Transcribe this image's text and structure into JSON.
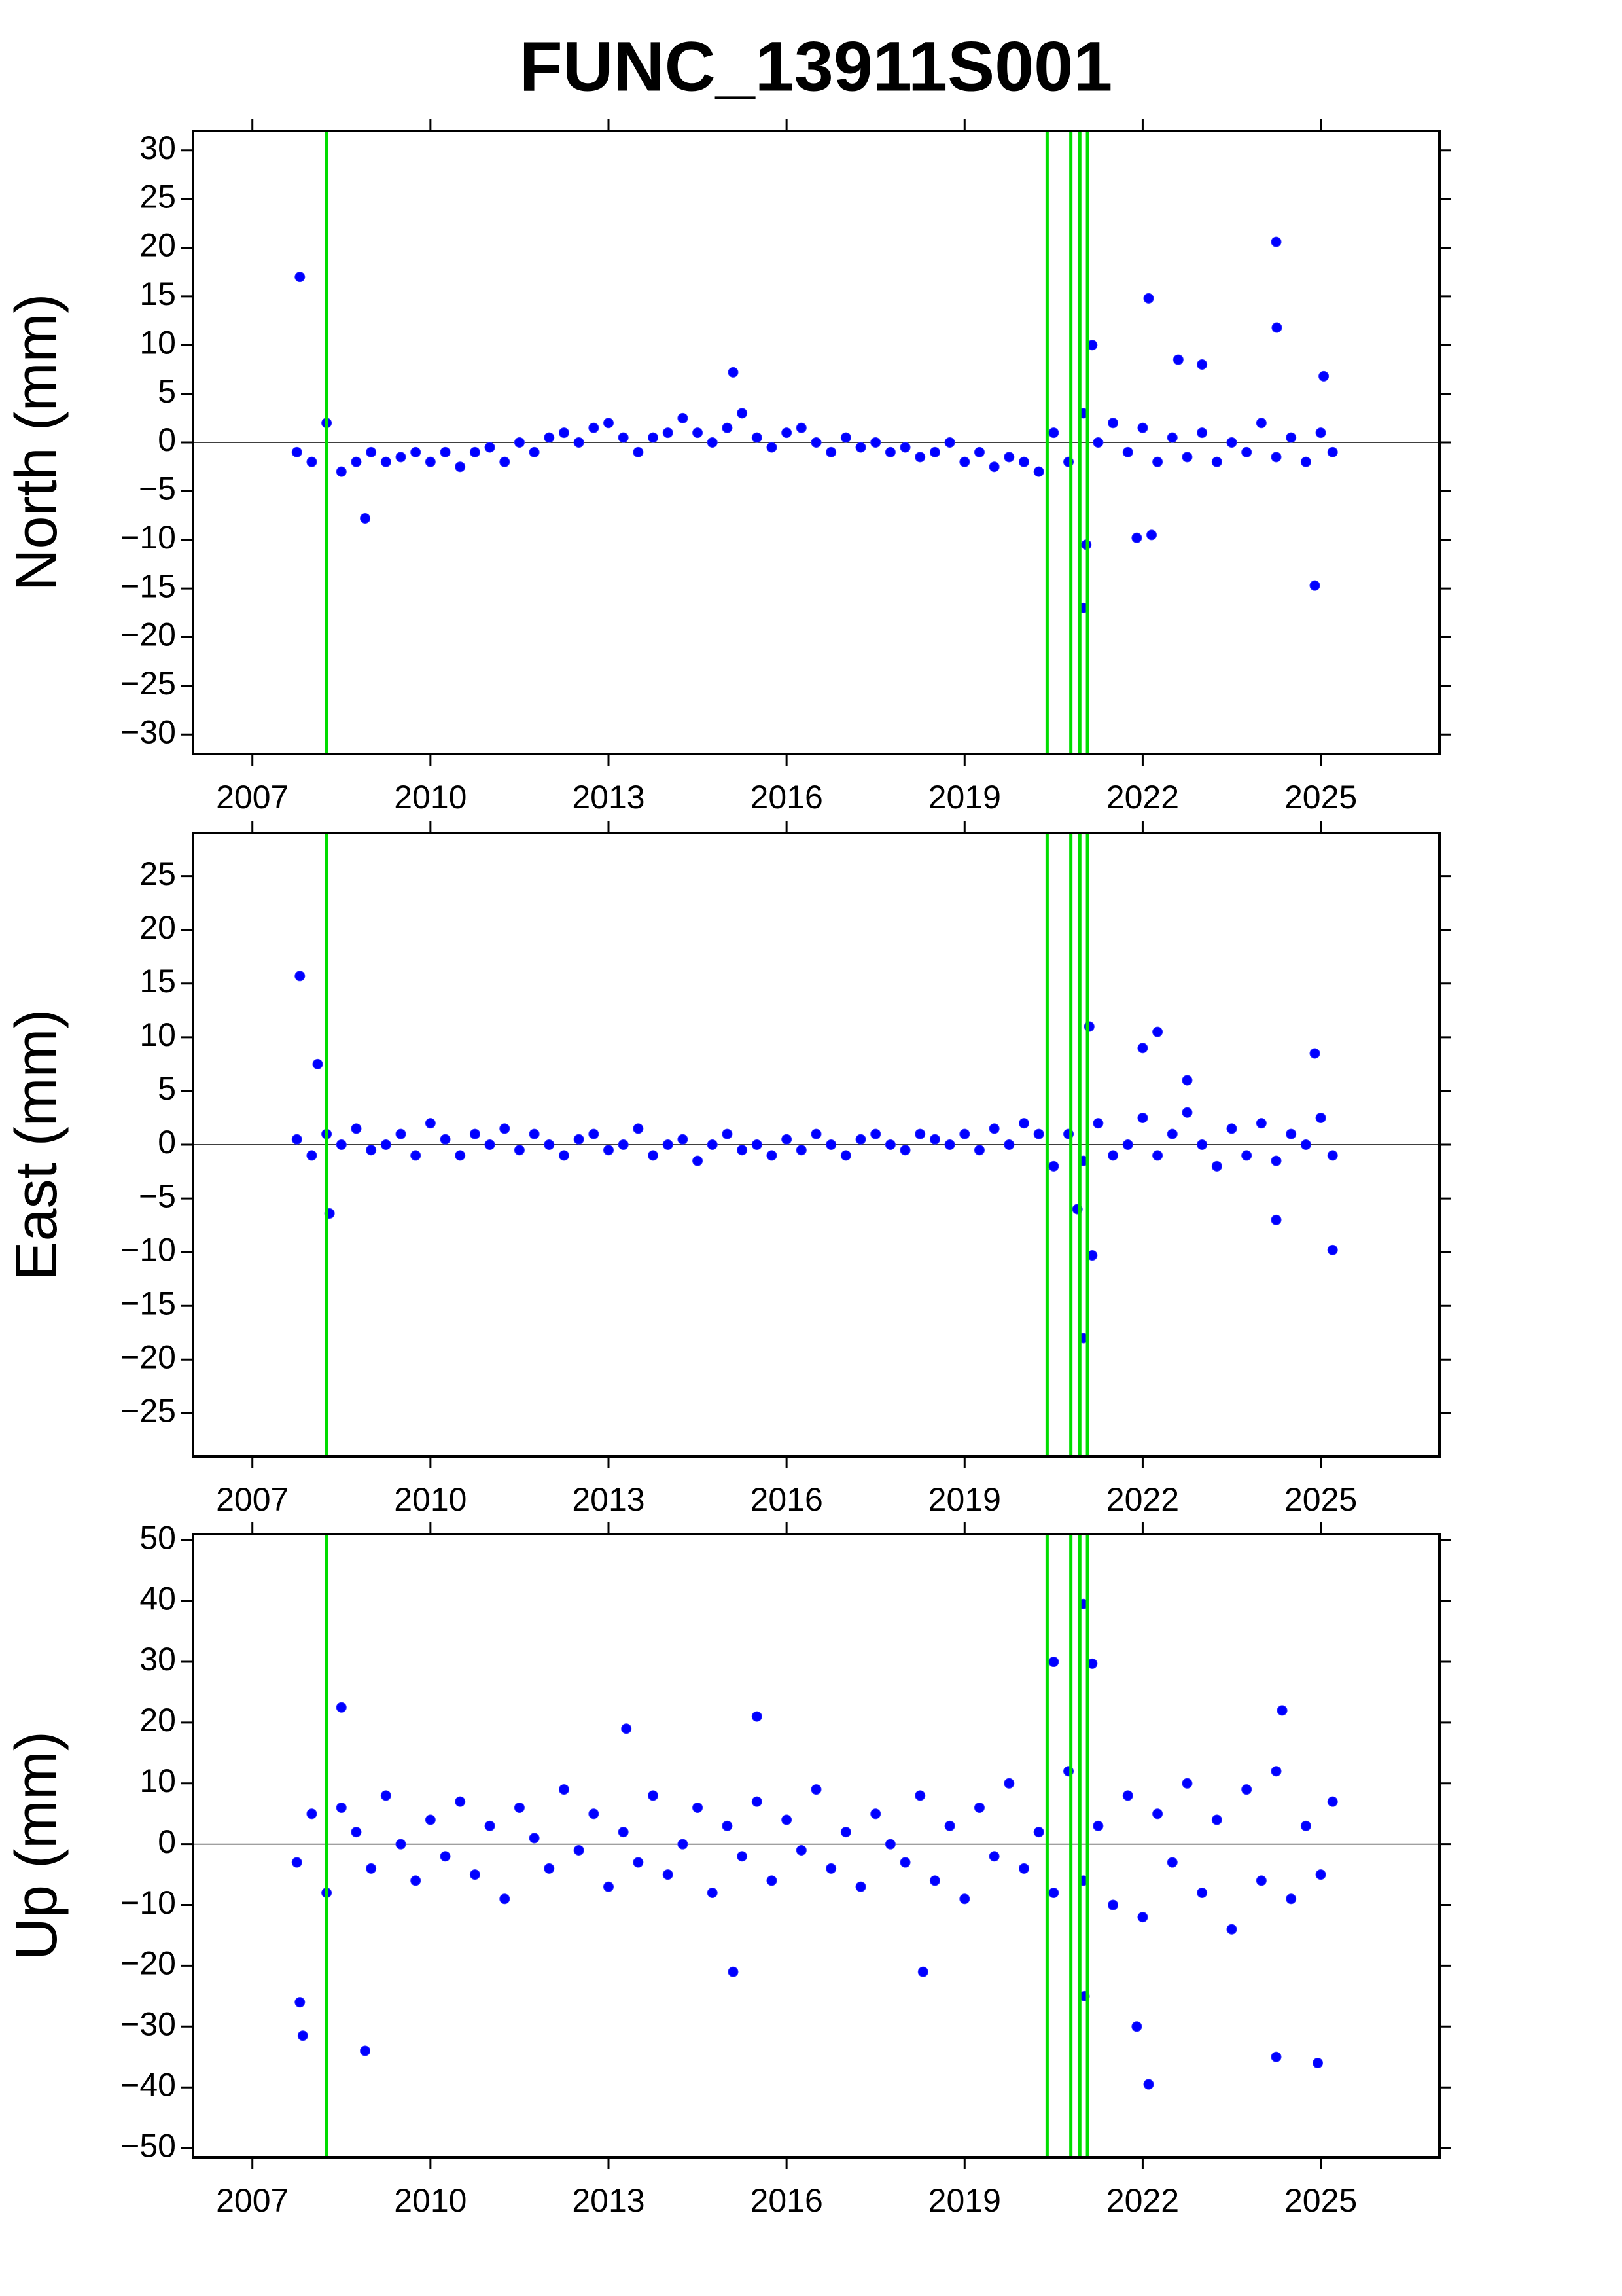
{
  "title": "FUNC_13911S001",
  "chart_data": [
    {
      "type": "scatter",
      "y_label": "North (mm)",
      "color": "#0000ff",
      "vline_color": "#00dd00",
      "hline": 0,
      "xlim": [
        2006,
        2027
      ],
      "xticks": [
        2007,
        2010,
        2013,
        2016,
        2019,
        2022,
        2025
      ],
      "ylim": [
        -32,
        32
      ],
      "yticks": [
        {
          "value": -30,
          "label": "−30"
        },
        {
          "value": -25,
          "label": "−25"
        },
        {
          "value": -20,
          "label": "−20"
        },
        {
          "value": -15,
          "label": "−15"
        },
        {
          "value": -10,
          "label": "−10"
        },
        {
          "value": -5,
          "label": "−5"
        },
        0,
        5,
        10,
        15,
        20,
        25,
        30
      ],
      "vlines": [
        2008.25,
        2020.39,
        2020.79,
        2020.94,
        2021.07
      ],
      "x": [
        2007.75,
        2008,
        2008.25,
        2008.5,
        2008.75,
        2009,
        2009.25,
        2009.5,
        2009.75,
        2010,
        2010.25,
        2010.5,
        2010.75,
        2011,
        2011.25,
        2011.5,
        2011.75,
        2012,
        2012.25,
        2012.5,
        2012.75,
        2013,
        2013.25,
        2013.5,
        2013.75,
        2014,
        2014.25,
        2014.5,
        2014.75,
        2015,
        2015.25,
        2015.5,
        2015.75,
        2016,
        2016.25,
        2016.5,
        2016.75,
        2017,
        2017.25,
        2017.5,
        2017.75,
        2018,
        2018.25,
        2018.5,
        2018.75,
        2019,
        2019.25,
        2019.5,
        2019.75,
        2020,
        2020.25,
        2020.5,
        2020.75,
        2021,
        2021.25,
        2021.5,
        2021.75,
        2022,
        2022.25,
        2022.5,
        2022.75,
        2023,
        2023.25,
        2023.5,
        2023.75,
        2024,
        2024.25,
        2024.5,
        2024.75,
        2025,
        2025.2,
        2007.8,
        2008.9,
        2015.1,
        2021.0,
        2021.05,
        2021.15,
        2022.1,
        2022.15,
        2021.9,
        2024.25,
        2024.26,
        2024.9,
        2022.6,
        2023.0,
        2025.05
      ],
      "values": [
        -1,
        -2,
        2,
        -3,
        -2,
        -1,
        -2,
        -1.5,
        -1,
        -2,
        -1,
        -2.5,
        -1,
        -0.5,
        -2,
        0,
        -1,
        0.5,
        1,
        0,
        1.5,
        2,
        0.5,
        -1,
        0.5,
        1,
        2.5,
        1,
        0,
        1.5,
        3,
        0.5,
        -0.5,
        1,
        1.5,
        0,
        -1,
        0.5,
        -0.5,
        0,
        -1,
        -0.5,
        -1.5,
        -1,
        0,
        -2,
        -1,
        -2.5,
        -1.5,
        -2,
        -3,
        1,
        -2,
        3,
        0,
        2,
        -1,
        1.5,
        -2,
        0.5,
        -1.5,
        1,
        -2,
        0,
        -1,
        2,
        -1.5,
        0.5,
        -2,
        1,
        -1,
        17,
        -7.8,
        7.2,
        -17,
        -10.5,
        10,
        14.8,
        -9.5,
        -9.8,
        20.6,
        11.8,
        -14.7,
        8.5,
        8,
        6.8
      ]
    },
    {
      "type": "scatter",
      "y_label": "East (mm)",
      "color": "#0000ff",
      "vline_color": "#00dd00",
      "hline": 0,
      "xlim": [
        2006,
        2027
      ],
      "xticks": [
        2007,
        2010,
        2013,
        2016,
        2019,
        2022,
        2025
      ],
      "ylim": [
        -29,
        29
      ],
      "yticks": [
        {
          "value": -25,
          "label": "−25"
        },
        {
          "value": -20,
          "label": "−20"
        },
        {
          "value": -15,
          "label": "−15"
        },
        {
          "value": -10,
          "label": "−10"
        },
        {
          "value": -5,
          "label": "−5"
        },
        0,
        5,
        10,
        15,
        20,
        25
      ],
      "vlines": [
        2008.25,
        2020.39,
        2020.79,
        2020.94,
        2021.07
      ],
      "x": [
        2007.75,
        2008,
        2008.25,
        2008.5,
        2008.75,
        2009,
        2009.25,
        2009.5,
        2009.75,
        2010,
        2010.25,
        2010.5,
        2010.75,
        2011,
        2011.25,
        2011.5,
        2011.75,
        2012,
        2012.25,
        2012.5,
        2012.75,
        2013,
        2013.25,
        2013.5,
        2013.75,
        2014,
        2014.25,
        2014.5,
        2014.75,
        2015,
        2015.25,
        2015.5,
        2015.75,
        2016,
        2016.25,
        2016.5,
        2016.75,
        2017,
        2017.25,
        2017.5,
        2017.75,
        2018,
        2018.25,
        2018.5,
        2018.75,
        2019,
        2019.25,
        2019.5,
        2019.75,
        2020,
        2020.25,
        2020.5,
        2020.75,
        2021,
        2021.25,
        2021.5,
        2021.75,
        2022,
        2022.25,
        2022.5,
        2022.75,
        2023,
        2023.25,
        2023.5,
        2023.75,
        2024,
        2024.25,
        2024.5,
        2024.75,
        2025,
        2025.2,
        2007.8,
        2008.3,
        2021.1,
        2021.0,
        2021.15,
        2022.25,
        2022.0,
        2024.25,
        2025.2,
        2024.9,
        2020.9,
        2008.1,
        2022.75
      ],
      "values": [
        0.5,
        -1,
        1,
        0,
        1.5,
        -0.5,
        0,
        1,
        -1,
        2,
        0.5,
        -1,
        1,
        0,
        1.5,
        -0.5,
        1,
        0,
        -1,
        0.5,
        1,
        -0.5,
        0,
        1.5,
        -1,
        0,
        0.5,
        -1.5,
        0,
        1,
        -0.5,
        0,
        -1,
        0.5,
        -0.5,
        1,
        0,
        -1,
        0.5,
        1,
        0,
        -0.5,
        1,
        0.5,
        0,
        1,
        -0.5,
        1.5,
        0,
        2,
        1,
        -2,
        1,
        -1.5,
        2,
        -1,
        0,
        2.5,
        -1,
        1,
        3,
        0,
        -2,
        1.5,
        -1,
        2,
        -1.5,
        1,
        0,
        2.5,
        -1,
        15.7,
        -6.4,
        11,
        -18,
        -10.3,
        10.5,
        9,
        -7,
        -9.8,
        8.5,
        -6,
        7.5,
        6
      ]
    },
    {
      "type": "scatter",
      "y_label": "Up (mm)",
      "color": "#0000ff",
      "vline_color": "#00dd00",
      "hline": 0,
      "xlim": [
        2006,
        2027
      ],
      "xticks": [
        2007,
        2010,
        2013,
        2016,
        2019,
        2022,
        2025
      ],
      "ylim": [
        -51.5,
        51
      ],
      "yticks": [
        {
          "value": -50,
          "label": "−50"
        },
        {
          "value": -40,
          "label": "−40"
        },
        {
          "value": -30,
          "label": "−30"
        },
        {
          "value": -20,
          "label": "−20"
        },
        {
          "value": -10,
          "label": "−10"
        },
        0,
        10,
        20,
        30,
        40,
        50
      ],
      "vlines": [
        2008.25,
        2020.39,
        2020.79,
        2020.94,
        2021.07
      ],
      "x": [
        2007.75,
        2008,
        2008.25,
        2008.5,
        2008.75,
        2009,
        2009.25,
        2009.5,
        2009.75,
        2010,
        2010.25,
        2010.5,
        2010.75,
        2011,
        2011.25,
        2011.5,
        2011.75,
        2012,
        2012.25,
        2012.5,
        2012.75,
        2013,
        2013.25,
        2013.5,
        2013.75,
        2014,
        2014.25,
        2014.5,
        2014.75,
        2015,
        2015.25,
        2015.5,
        2015.75,
        2016,
        2016.25,
        2016.5,
        2016.75,
        2017,
        2017.25,
        2017.5,
        2017.75,
        2018,
        2018.25,
        2018.5,
        2018.75,
        2019,
        2019.25,
        2019.5,
        2019.75,
        2020,
        2020.25,
        2020.5,
        2020.75,
        2021,
        2021.25,
        2021.5,
        2021.75,
        2022,
        2022.25,
        2022.5,
        2022.75,
        2023,
        2023.25,
        2023.5,
        2023.75,
        2024,
        2024.25,
        2024.5,
        2024.75,
        2025,
        2025.2,
        2007.85,
        2007.8,
        2008.9,
        2008.5,
        2013.3,
        2015.5,
        2020.5,
        2021.0,
        2021.15,
        2021.02,
        2022.1,
        2021.9,
        2024.25,
        2024.35,
        2024.95,
        2015.1,
        2018.3
      ],
      "values": [
        -3,
        5,
        -8,
        6,
        2,
        -4,
        8,
        0,
        -6,
        4,
        -2,
        7,
        -5,
        3,
        -9,
        6,
        1,
        -4,
        9,
        -1,
        5,
        -7,
        2,
        -3,
        8,
        -5,
        0,
        6,
        -8,
        3,
        -2,
        7,
        -6,
        4,
        -1,
        9,
        -4,
        2,
        -7,
        5,
        0,
        -3,
        8,
        -6,
        3,
        -9,
        6,
        -2,
        10,
        -4,
        2,
        -8,
        12,
        -6,
        3,
        -10,
        8,
        -12,
        5,
        -3,
        10,
        -8,
        4,
        -14,
        9,
        -6,
        12,
        -9,
        3,
        -5,
        7,
        -31.5,
        -26,
        -34,
        22.5,
        19,
        21,
        30,
        39.5,
        29.7,
        -25,
        -39.5,
        -30,
        -35,
        22,
        -36,
        -21,
        -21
      ]
    }
  ]
}
